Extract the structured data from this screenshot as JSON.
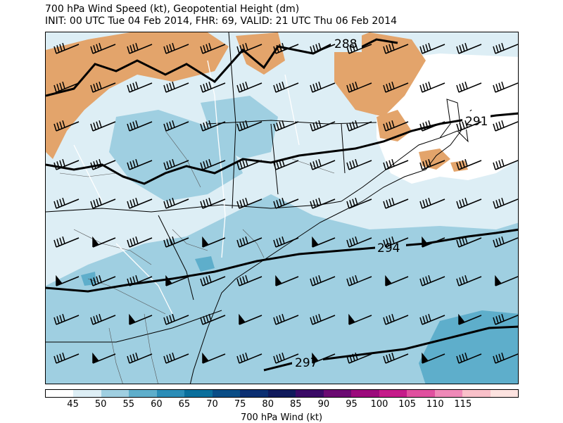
{
  "title": {
    "line1": "700 hPa Wind Speed (kt), Geopotential Height (dm)",
    "line2": "INIT: 00 UTC Tue 04 Feb 2014, FHR: 69, VALID: 21 UTC Thu 06 Feb 2014"
  },
  "colors": {
    "land_low_wind": "#ffffff",
    "wind_45": "#ddeef5",
    "wind_50": "#9fcfe1",
    "wind_55": "#5eaecb",
    "terrain": "#e3a46b",
    "ocean": "#ffffff"
  },
  "contours": {
    "labels": [
      "288",
      "291",
      "294",
      "297"
    ]
  },
  "colorbar": {
    "label": "700 hPa Wind (kt)",
    "ticks": [
      "45",
      "50",
      "55",
      "60",
      "65",
      "70",
      "75",
      "80",
      "85",
      "90",
      "95",
      "100",
      "105",
      "110",
      "115"
    ],
    "colors": [
      "#ffffff",
      "#ddeef5",
      "#9fcfe1",
      "#5eaecb",
      "#2b8db7",
      "#0a6f9c",
      "#0a4d86",
      "#0b2f72",
      "#101a5c",
      "#3a0a66",
      "#6b0a72",
      "#9c0a7c",
      "#c51b8a",
      "#e0509f",
      "#ef89b8",
      "#f9c0c9",
      "#fde3e0"
    ]
  }
}
